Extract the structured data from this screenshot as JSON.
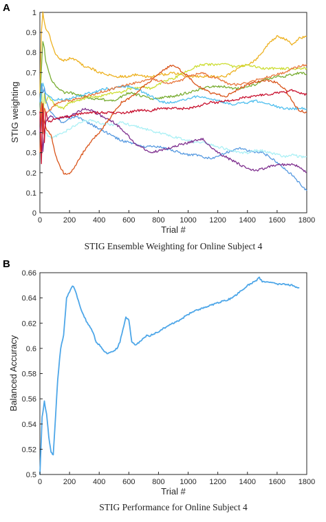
{
  "chart_data": [
    {
      "panel": "A",
      "type": "line",
      "title": "STIG Ensemble Weighting for Online Subject 4",
      "xlabel": "Trial #",
      "ylabel": "STIG weighting",
      "xlim": [
        0,
        1800
      ],
      "ylim": [
        0,
        1
      ],
      "xticks": [
        "0",
        "200",
        "400",
        "600",
        "800",
        "1000",
        "1200",
        "1400",
        "1600",
        "1800"
      ],
      "yticks": [
        "0",
        "0.1",
        "0.2",
        "0.3",
        "0.4",
        "0.5",
        "0.6",
        "0.7",
        "0.8",
        "0.9",
        "1"
      ],
      "grid": false,
      "x": [
        0,
        10,
        20,
        30,
        40,
        60,
        80,
        100,
        130,
        160,
        200,
        250,
        300,
        350,
        400,
        450,
        500,
        550,
        600,
        650,
        700,
        750,
        800,
        850,
        900,
        950,
        1000,
        1050,
        1100,
        1150,
        1200,
        1250,
        1300,
        1350,
        1400,
        1450,
        1500,
        1550,
        1600,
        1650,
        1700,
        1750,
        1800
      ],
      "series": [
        {
          "color": "#EDB120",
          "values": [
            0.6,
            0.9,
            1.0,
            0.95,
            0.92,
            0.9,
            0.84,
            0.8,
            0.77,
            0.76,
            0.77,
            0.76,
            0.73,
            0.72,
            0.7,
            0.69,
            0.68,
            0.68,
            0.68,
            0.69,
            0.68,
            0.68,
            0.69,
            0.69,
            0.7,
            0.69,
            0.68,
            0.68,
            0.68,
            0.68,
            0.68,
            0.68,
            0.7,
            0.73,
            0.74,
            0.76,
            0.8,
            0.85,
            0.88,
            0.87,
            0.84,
            0.87,
            0.88
          ]
        },
        {
          "color": "#CCDD33",
          "values": [
            0.5,
            0.65,
            0.45,
            0.6,
            0.55,
            0.58,
            0.56,
            0.54,
            0.53,
            0.52,
            0.55,
            0.56,
            0.57,
            0.58,
            0.58,
            0.59,
            0.6,
            0.6,
            0.62,
            0.62,
            0.63,
            0.62,
            0.64,
            0.66,
            0.67,
            0.69,
            0.71,
            0.73,
            0.74,
            0.74,
            0.74,
            0.74,
            0.73,
            0.73,
            0.74,
            0.73,
            0.72,
            0.72,
            0.72,
            0.72,
            0.72,
            0.72,
            0.72
          ]
        },
        {
          "color": "#77AC30",
          "values": [
            0.55,
            0.72,
            0.85,
            0.82,
            0.75,
            0.7,
            0.66,
            0.64,
            0.62,
            0.6,
            0.6,
            0.59,
            0.58,
            0.57,
            0.57,
            0.56,
            0.56,
            0.58,
            0.6,
            0.59,
            0.58,
            0.57,
            0.57,
            0.58,
            0.58,
            0.59,
            0.6,
            0.61,
            0.62,
            0.63,
            0.63,
            0.63,
            0.62,
            0.62,
            0.63,
            0.64,
            0.66,
            0.67,
            0.68,
            0.68,
            0.69,
            0.7,
            0.69
          ]
        },
        {
          "color": "#4DBEEE",
          "values": [
            0.5,
            0.6,
            0.65,
            0.62,
            0.6,
            0.58,
            0.57,
            0.56,
            0.57,
            0.56,
            0.57,
            0.58,
            0.59,
            0.6,
            0.61,
            0.62,
            0.62,
            0.63,
            0.63,
            0.62,
            0.6,
            0.58,
            0.56,
            0.55,
            0.55,
            0.56,
            0.57,
            0.58,
            0.58,
            0.57,
            0.56,
            0.55,
            0.54,
            0.55,
            0.55,
            0.56,
            0.55,
            0.54,
            0.53,
            0.52,
            0.52,
            0.52,
            0.52
          ]
        },
        {
          "color": "#5599E0",
          "values": [
            0.55,
            0.65,
            0.6,
            0.62,
            0.56,
            0.52,
            0.5,
            0.48,
            0.46,
            0.45,
            0.47,
            0.48,
            0.46,
            0.44,
            0.42,
            0.4,
            0.38,
            0.36,
            0.35,
            0.34,
            0.33,
            0.33,
            0.33,
            0.32,
            0.31,
            0.3,
            0.29,
            0.29,
            0.28,
            0.27,
            0.28,
            0.3,
            0.31,
            0.32,
            0.31,
            0.3,
            0.3,
            0.28,
            0.25,
            0.22,
            0.19,
            0.15,
            0.11
          ]
        },
        {
          "color": "#AAF0F5",
          "values": [
            0.5,
            0.45,
            0.4,
            0.42,
            0.4,
            0.38,
            0.37,
            0.38,
            0.39,
            0.4,
            0.42,
            0.44,
            0.46,
            0.46,
            0.45,
            0.44,
            0.44,
            0.45,
            0.44,
            0.43,
            0.42,
            0.41,
            0.4,
            0.39,
            0.38,
            0.37,
            0.36,
            0.35,
            0.35,
            0.34,
            0.33,
            0.32,
            0.31,
            0.3,
            0.3,
            0.31,
            0.31,
            0.3,
            0.29,
            0.28,
            0.29,
            0.28,
            0.28
          ]
        },
        {
          "color": "#7E2F8E",
          "values": [
            0.4,
            0.5,
            0.3,
            0.4,
            0.45,
            0.48,
            0.48,
            0.47,
            0.47,
            0.48,
            0.48,
            0.5,
            0.52,
            0.51,
            0.49,
            0.47,
            0.45,
            0.42,
            0.38,
            0.34,
            0.32,
            0.3,
            0.31,
            0.32,
            0.33,
            0.34,
            0.35,
            0.36,
            0.37,
            0.33,
            0.3,
            0.28,
            0.26,
            0.24,
            0.22,
            0.21,
            0.22,
            0.23,
            0.24,
            0.24,
            0.24,
            0.23,
            0.2
          ]
        },
        {
          "color": "#D95319",
          "values": [
            0.3,
            0.55,
            0.5,
            0.45,
            0.42,
            0.4,
            0.38,
            0.3,
            0.24,
            0.2,
            0.19,
            0.25,
            0.31,
            0.36,
            0.4,
            0.45,
            0.5,
            0.55,
            0.57,
            0.6,
            0.63,
            0.66,
            0.69,
            0.72,
            0.74,
            0.71,
            0.68,
            0.64,
            0.62,
            0.6,
            0.59,
            0.58,
            0.6,
            0.62,
            0.64,
            0.65,
            0.66,
            0.66,
            0.65,
            0.62,
            0.56,
            0.51,
            0.5
          ]
        },
        {
          "color": "#E8753A",
          "values": [
            0.5,
            0.55,
            0.4,
            0.52,
            0.5,
            0.51,
            0.52,
            0.54,
            0.55,
            0.56,
            0.56,
            0.57,
            0.58,
            0.59,
            0.6,
            0.61,
            0.62,
            0.63,
            0.64,
            0.65,
            0.66,
            0.67,
            0.66,
            0.65,
            0.65,
            0.66,
            0.68,
            0.69,
            0.7,
            0.68,
            0.67,
            0.65,
            0.64,
            0.64,
            0.65,
            0.66,
            0.67,
            0.68,
            0.69,
            0.7,
            0.72,
            0.73,
            0.74
          ]
        },
        {
          "color": "#C8102E",
          "values": [
            0.5,
            0.25,
            0.55,
            0.35,
            0.5,
            0.45,
            0.46,
            0.47,
            0.47,
            0.48,
            0.48,
            0.49,
            0.5,
            0.5,
            0.5,
            0.5,
            0.5,
            0.5,
            0.5,
            0.51,
            0.51,
            0.51,
            0.52,
            0.52,
            0.52,
            0.52,
            0.52,
            0.53,
            0.54,
            0.55,
            0.55,
            0.56,
            0.56,
            0.57,
            0.58,
            0.58,
            0.59,
            0.59,
            0.6,
            0.6,
            0.61,
            0.6,
            0.59
          ]
        }
      ]
    },
    {
      "panel": "B",
      "type": "line",
      "title": "STIG Performance for Online Subject 4",
      "xlabel": "Trial #",
      "ylabel": "Balanced Accuracy",
      "xlim": [
        0,
        1800
      ],
      "ylim": [
        0.5,
        0.66
      ],
      "xticks": [
        "0",
        "200",
        "400",
        "600",
        "800",
        "1000",
        "1200",
        "1400",
        "1600",
        "1800"
      ],
      "yticks": [
        "0.5",
        "0.52",
        "0.54",
        "0.56",
        "0.58",
        "0.6",
        "0.62",
        "0.64",
        "0.66"
      ],
      "grid": false,
      "series": [
        {
          "color": "#4DA6E8",
          "x": [
            0,
            15,
            30,
            45,
            60,
            75,
            90,
            100,
            120,
            140,
            160,
            180,
            200,
            220,
            240,
            260,
            280,
            300,
            320,
            340,
            360,
            380,
            400,
            420,
            440,
            460,
            480,
            500,
            520,
            540,
            560,
            580,
            600,
            620,
            640,
            660,
            680,
            700,
            720,
            740,
            760,
            780,
            800,
            850,
            900,
            950,
            1000,
            1050,
            1100,
            1150,
            1200,
            1250,
            1300,
            1350,
            1400,
            1450,
            1480,
            1500,
            1550,
            1600,
            1650,
            1700,
            1750
          ],
          "values": [
            0.5,
            0.545,
            0.558,
            0.548,
            0.53,
            0.518,
            0.515,
            0.535,
            0.575,
            0.6,
            0.61,
            0.64,
            0.645,
            0.65,
            0.645,
            0.638,
            0.63,
            0.625,
            0.62,
            0.617,
            0.612,
            0.605,
            0.603,
            0.6,
            0.597,
            0.596,
            0.597,
            0.598,
            0.6,
            0.605,
            0.615,
            0.625,
            0.622,
            0.605,
            0.603,
            0.604,
            0.606,
            0.608,
            0.61,
            0.61,
            0.611,
            0.612,
            0.613,
            0.617,
            0.62,
            0.623,
            0.627,
            0.63,
            0.632,
            0.634,
            0.636,
            0.638,
            0.64,
            0.645,
            0.65,
            0.653,
            0.656,
            0.653,
            0.652,
            0.651,
            0.651,
            0.65,
            0.648
          ]
        }
      ]
    }
  ],
  "panels": {
    "a_letter": "A",
    "b_letter": "B"
  }
}
